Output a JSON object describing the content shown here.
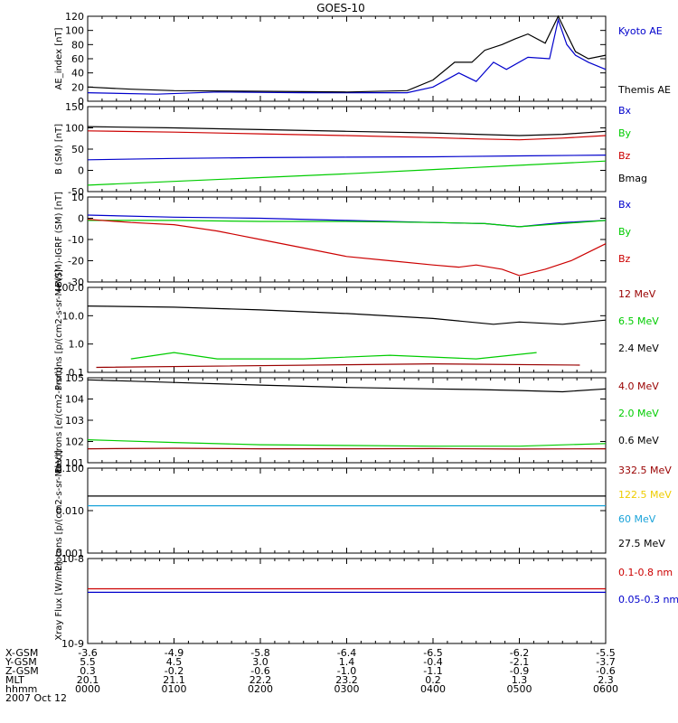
{
  "title": "GOES-10",
  "footer": {
    "row_labels": [
      "X-GSM",
      "Y-GSM",
      "Z-GSM",
      "MLT",
      "hhmm"
    ],
    "columns": [
      [
        "-3.6",
        "5.5",
        "0.3",
        "20.1",
        "0000"
      ],
      [
        "-4.9",
        "4.5",
        "-0.2",
        "21.1",
        "0100"
      ],
      [
        "-5.8",
        "3.0",
        "-0.6",
        "22.2",
        "0200"
      ],
      [
        "-6.4",
        "1.4",
        "-1.0",
        "23.2",
        "0300"
      ],
      [
        "-6.5",
        "-0.4",
        "-1.1",
        "0.2",
        "0400"
      ],
      [
        "-6.2",
        "-2.1",
        "-0.9",
        "1.3",
        "0500"
      ],
      [
        "-5.5",
        "-3.7",
        "-0.6",
        "2.3",
        "0600"
      ]
    ],
    "date": "2007 Oct 12"
  },
  "chart_data": [
    {
      "type": "line",
      "ylabel": "AE_index [nT]",
      "yscale": "linear",
      "ylim": [
        0,
        120
      ],
      "yticks": [
        "0",
        "20",
        "40",
        "60",
        "80",
        "100",
        "120"
      ],
      "x_range_hours": [
        0,
        6
      ],
      "series": [
        {
          "name": "Kyoto AE",
          "color": "#0000cc",
          "x": [
            0,
            0.8,
            1.5,
            2.5,
            3.7,
            4.0,
            4.3,
            4.5,
            4.7,
            4.85,
            5.1,
            5.35,
            5.45,
            5.55,
            5.65,
            5.8,
            6.0
          ],
          "y": [
            12,
            10,
            13,
            12,
            12,
            20,
            40,
            28,
            55,
            45,
            62,
            60,
            115,
            80,
            65,
            55,
            45
          ]
        },
        {
          "name": "Themis AE",
          "color": "#000000",
          "x": [
            0,
            0.5,
            1.0,
            2.0,
            3.0,
            3.7,
            4.0,
            4.25,
            4.45,
            4.6,
            4.8,
            4.95,
            5.1,
            5.3,
            5.45,
            5.55,
            5.65,
            5.8,
            6.0
          ],
          "y": [
            20,
            17,
            15,
            14,
            13,
            15,
            30,
            55,
            55,
            72,
            80,
            88,
            95,
            82,
            120,
            95,
            70,
            60,
            65
          ]
        }
      ]
    },
    {
      "type": "line",
      "ylabel": "B (SM) [nT]",
      "yscale": "linear",
      "ylim": [
        -50,
        150
      ],
      "yticks": [
        "-50",
        "0",
        "50",
        "100",
        "150"
      ],
      "series": [
        {
          "name": "Bx",
          "color": "#0000cc",
          "x": [
            0,
            1,
            2,
            3,
            4,
            5,
            6
          ],
          "y": [
            25,
            28,
            30,
            31,
            32,
            34,
            36
          ]
        },
        {
          "name": "By",
          "color": "#00cc00",
          "x": [
            0,
            1,
            2,
            3,
            4,
            5,
            6
          ],
          "y": [
            -35,
            -26,
            -17,
            -8,
            2,
            12,
            22
          ]
        },
        {
          "name": "Bz",
          "color": "#cc0000",
          "x": [
            0,
            1,
            2,
            3,
            4,
            4.5,
            5,
            5.5,
            6
          ],
          "y": [
            93,
            90,
            86,
            82,
            77,
            74,
            72,
            76,
            82
          ]
        },
        {
          "name": "Bmag",
          "color": "#000000",
          "x": [
            0,
            1,
            2,
            3,
            4,
            4.5,
            5,
            5.5,
            6
          ],
          "y": [
            103,
            100,
            96,
            92,
            88,
            85,
            82,
            85,
            92
          ]
        }
      ]
    },
    {
      "type": "line",
      "ylabel": "B(SM)-IGRF (SM) [nT]",
      "yscale": "linear",
      "ylim": [
        -30,
        10
      ],
      "yticks": [
        "-30",
        "-20",
        "-10",
        "0",
        "10"
      ],
      "series": [
        {
          "name": "Bx",
          "color": "#0000cc",
          "x": [
            0,
            1,
            2,
            3,
            4,
            4.6,
            5,
            5.5,
            6
          ],
          "y": [
            1.5,
            0.5,
            0,
            -1,
            -2,
            -2.5,
            -4,
            -2,
            -1
          ]
        },
        {
          "name": "By",
          "color": "#00cc00",
          "x": [
            0,
            1,
            2,
            3,
            4,
            4.6,
            5,
            5.5,
            6
          ],
          "y": [
            -1,
            -1,
            -1.5,
            -1.5,
            -2,
            -2.5,
            -4,
            -2.5,
            -1
          ]
        },
        {
          "name": "Bz",
          "color": "#cc0000",
          "x": [
            0,
            0.5,
            1.0,
            1.5,
            2.0,
            2.5,
            3.0,
            3.5,
            4.0,
            4.3,
            4.5,
            4.8,
            5.0,
            5.3,
            5.6,
            6.0
          ],
          "y": [
            -0.5,
            -2,
            -3,
            -6,
            -10,
            -14,
            -18,
            -20,
            -22,
            -23,
            -22,
            -24,
            -27,
            -24,
            -20,
            -12
          ]
        }
      ]
    },
    {
      "type": "line",
      "ylabel": "Protons [p/(cm2-s-sr-MeV)]",
      "yscale": "log",
      "ylim": [
        0.1,
        100.0
      ],
      "yticks": [
        "0.1",
        "1.0",
        "10.0",
        "100.0"
      ],
      "series": [
        {
          "name": "12 MeV",
          "color": "#990000",
          "x": [
            0.1,
            4.0,
            5.7
          ],
          "y": [
            0.15,
            0.2,
            0.18
          ]
        },
        {
          "name": "6.5 MeV",
          "color": "#00cc00",
          "x": [
            0.5,
            1.0,
            1.5,
            2.5,
            3.5,
            4.5,
            5.2
          ],
          "y": [
            0.3,
            0.5,
            0.3,
            0.3,
            0.4,
            0.3,
            0.5
          ]
        },
        {
          "name": "2.4 MeV",
          "color": "#000000",
          "x": [
            0,
            1,
            2,
            3,
            4,
            4.7,
            5,
            5.5,
            6
          ],
          "y": [
            22,
            20,
            16,
            12,
            8,
            5,
            6,
            5,
            7
          ]
        }
      ]
    },
    {
      "type": "line",
      "ylabel": "Electrons [e/(cm2-s-sr)]",
      "yscale": "log",
      "ylim": [
        10,
        100000
      ],
      "yticks": [
        "10^1",
        "10^2",
        "10^3",
        "10^4",
        "10^5"
      ],
      "series": [
        {
          "name": "4.0 MeV",
          "color": "#990000",
          "x": [
            0,
            1,
            2,
            3,
            4,
            5,
            6
          ],
          "y": [
            45,
            48,
            45,
            45,
            46,
            44,
            45
          ]
        },
        {
          "name": "2.0 MeV",
          "color": "#00cc00",
          "x": [
            0,
            1,
            2,
            3,
            4,
            5,
            6
          ],
          "y": [
            120,
            90,
            70,
            65,
            60,
            60,
            80
          ]
        },
        {
          "name": "0.6 MeV",
          "color": "#000000",
          "x": [
            0,
            1,
            2,
            3,
            4,
            4.5,
            5,
            5.5,
            6
          ],
          "y": [
            80000,
            60000,
            45000,
            35000,
            30000,
            28000,
            25000,
            22000,
            30000
          ]
        }
      ]
    },
    {
      "type": "line",
      "ylabel": "Protons [p/(cm2-s-sr-MeV)]",
      "yscale": "log",
      "ylim": [
        0.001,
        0.1
      ],
      "yticks": [
        "0.001",
        "0.010",
        "0.100"
      ],
      "series": [
        {
          "name": "332.5 MeV",
          "color": "#990000",
          "x": [],
          "y": []
        },
        {
          "name": "122.5 MeV",
          "color": "#eecc00",
          "x": [],
          "y": []
        },
        {
          "name": "60 MeV",
          "color": "#1aa3d9",
          "x": [
            0,
            6
          ],
          "y": [
            0.013,
            0.013
          ]
        },
        {
          "name": "27.5 MeV",
          "color": "#000000",
          "x": [
            0,
            6
          ],
          "y": [
            0.022,
            0.022
          ]
        }
      ]
    },
    {
      "type": "line",
      "ylabel": "Xray Flux [W/m2]",
      "yscale": "log",
      "ylim": [
        1e-09,
        1e-08
      ],
      "yticks": [
        "10^-9",
        "10^-8"
      ],
      "series": [
        {
          "name": "0.1-0.8 nm",
          "color": "#cc0000",
          "x": [
            0,
            6
          ],
          "y": [
            4.4e-09,
            4.4e-09
          ]
        },
        {
          "name": "0.05-0.3 nm",
          "color": "#0000cc",
          "x": [
            0,
            6
          ],
          "y": [
            4e-09,
            4e-09
          ]
        }
      ]
    }
  ]
}
